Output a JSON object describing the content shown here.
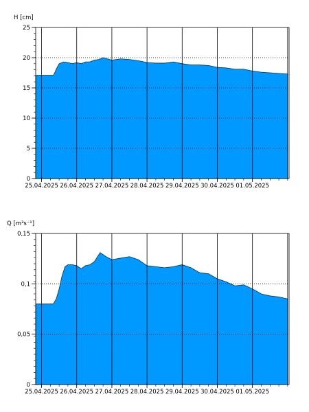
{
  "chart_data": [
    {
      "type": "area",
      "ylabel": "H [cm]",
      "ylim": [
        0,
        25
      ],
      "yticks": [
        0,
        5,
        10,
        15,
        20,
        25
      ],
      "ytick_labels": [
        "0",
        "5",
        "10",
        "15",
        "20",
        "25"
      ],
      "xlim": [
        "2025-04-24T20:00",
        "2025-05-02T01:00"
      ],
      "day_lines": [
        "2025-04-25T00:00",
        "2025-04-26T00:00",
        "2025-04-27T00:00",
        "2025-04-28T00:00",
        "2025-04-29T00:00",
        "2025-04-30T00:00",
        "2025-05-01T00:00",
        "2025-05-02T00:00"
      ],
      "xtick_positions": [
        "2025-04-25T00:00",
        "2025-04-26T00:00",
        "2025-04-27T00:00",
        "2025-04-28T00:00",
        "2025-04-29T00:00",
        "2025-04-30T00:00",
        "2025-05-01T00:00"
      ],
      "xtick_labels": [
        "25.04.2025",
        "26.04.2025",
        "27.04.2025",
        "28.04.2025",
        "29.04.2025",
        "30.04.2025",
        "01.05.2025"
      ],
      "grid_y": true,
      "grid_x": true,
      "color": "#0099ff",
      "series": [
        {
          "x": [
            "2025-04-24T20:00",
            "2025-04-25T08:00",
            "2025-04-25T09:00",
            "2025-04-25T10:00",
            "2025-04-25T12:00",
            "2025-04-25T15:00",
            "2025-04-25T18:00",
            "2025-04-25T21:00",
            "2025-04-26T00:00",
            "2025-04-26T03:00",
            "2025-04-26T06:00",
            "2025-04-26T09:00",
            "2025-04-26T12:00",
            "2025-04-26T15:00",
            "2025-04-26T18:00",
            "2025-04-26T21:00",
            "2025-04-27T00:00",
            "2025-04-27T06:00",
            "2025-04-27T12:00",
            "2025-04-27T18:00",
            "2025-04-28T00:00",
            "2025-04-28T06:00",
            "2025-04-28T12:00",
            "2025-04-28T18:00",
            "2025-04-29T00:00",
            "2025-04-29T06:00",
            "2025-04-29T12:00",
            "2025-04-29T18:00",
            "2025-04-30T00:00",
            "2025-04-30T06:00",
            "2025-04-30T12:00",
            "2025-04-30T18:00",
            "2025-05-01T00:00",
            "2025-05-01T06:00",
            "2025-05-01T12:00",
            "2025-05-01T18:00",
            "2025-05-02T00:00"
          ],
          "y": [
            17.1,
            17.1,
            17.5,
            18.1,
            19.0,
            19.3,
            19.2,
            19.0,
            19.2,
            19.0,
            19.3,
            19.3,
            19.6,
            19.7,
            20.0,
            19.8,
            19.6,
            19.8,
            19.7,
            19.5,
            19.2,
            19.1,
            19.1,
            19.3,
            19.0,
            18.8,
            18.8,
            18.7,
            18.4,
            18.3,
            18.1,
            18.1,
            17.8,
            17.6,
            17.5,
            17.4,
            17.3
          ]
        }
      ]
    },
    {
      "type": "area",
      "ylabel": "Q [m³s⁻¹]",
      "ylim": [
        0,
        0.15
      ],
      "yticks": [
        0,
        0.05,
        0.1,
        0.15
      ],
      "ytick_labels": [
        "0",
        "0,05",
        "0,1",
        "0,15"
      ],
      "xlim": [
        "2025-04-24T20:00",
        "2025-05-02T01:00"
      ],
      "day_lines": [
        "2025-04-25T00:00",
        "2025-04-26T00:00",
        "2025-04-27T00:00",
        "2025-04-28T00:00",
        "2025-04-29T00:00",
        "2025-04-30T00:00",
        "2025-05-01T00:00",
        "2025-05-02T00:00"
      ],
      "xtick_positions": [
        "2025-04-25T00:00",
        "2025-04-26T00:00",
        "2025-04-27T00:00",
        "2025-04-28T00:00",
        "2025-04-29T00:00",
        "2025-04-30T00:00",
        "2025-05-01T00:00"
      ],
      "xtick_labels": [
        "25.04.2025",
        "26.04.2025",
        "27.04.2025",
        "28.04.2025",
        "29.04.2025",
        "30.04.2025",
        "01.05.2025"
      ],
      "grid_y": true,
      "grid_x": true,
      "color": "#0099ff",
      "series": [
        {
          "x": [
            "2025-04-24T20:00",
            "2025-04-25T08:00",
            "2025-04-25T10:00",
            "2025-04-25T12:00",
            "2025-04-25T14:00",
            "2025-04-25T16:00",
            "2025-04-25T18:00",
            "2025-04-25T21:00",
            "2025-04-26T00:00",
            "2025-04-26T03:00",
            "2025-04-26T06:00",
            "2025-04-26T09:00",
            "2025-04-26T12:00",
            "2025-04-26T16:00",
            "2025-04-26T18:00",
            "2025-04-26T20:00",
            "2025-04-27T00:00",
            "2025-04-27T04:00",
            "2025-04-27T08:00",
            "2025-04-27T12:00",
            "2025-04-27T18:00",
            "2025-04-28T00:00",
            "2025-04-28T06:00",
            "2025-04-28T12:00",
            "2025-04-28T18:00",
            "2025-04-29T00:00",
            "2025-04-29T06:00",
            "2025-04-29T12:00",
            "2025-04-29T18:00",
            "2025-04-30T00:00",
            "2025-04-30T06:00",
            "2025-04-30T12:00",
            "2025-04-30T18:00",
            "2025-05-01T00:00",
            "2025-05-01T06:00",
            "2025-05-01T12:00",
            "2025-05-01T18:00",
            "2025-05-02T00:00"
          ],
          "y": [
            0.08,
            0.08,
            0.085,
            0.095,
            0.108,
            0.117,
            0.119,
            0.119,
            0.118,
            0.115,
            0.118,
            0.119,
            0.122,
            0.131,
            0.129,
            0.127,
            0.124,
            0.125,
            0.126,
            0.127,
            0.124,
            0.118,
            0.117,
            0.116,
            0.117,
            0.119,
            0.116,
            0.111,
            0.11,
            0.105,
            0.102,
            0.098,
            0.099,
            0.095,
            0.09,
            0.088,
            0.087,
            0.085
          ]
        }
      ]
    }
  ]
}
